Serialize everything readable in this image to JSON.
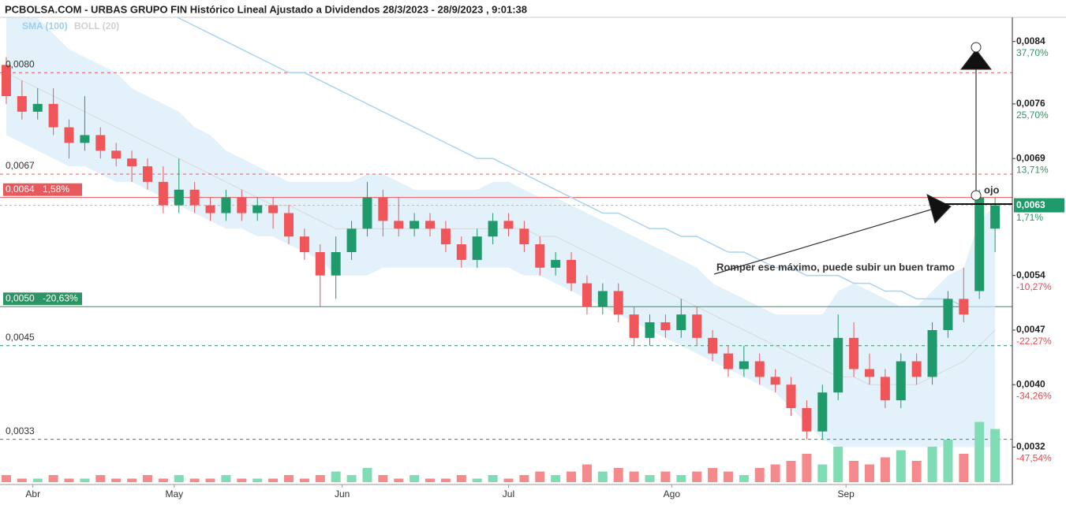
{
  "chart_data": {
    "type": "candlestick",
    "title": "PCBOLSA.COM - URBAS GRUPO FIN Histórico Lineal Ajustado a Dividendos 28/3/2023 - 28/9/2023 , 9:01:38",
    "indicators": [
      "SMA (100)",
      "BOLL (20)"
    ],
    "xlim": [
      -0.4,
      64.1
    ],
    "xticks": [
      {
        "value": 1.7,
        "label": "Abr"
      },
      {
        "value": 10.7,
        "label": "May"
      },
      {
        "value": 21.4,
        "label": "Jun"
      },
      {
        "value": 32,
        "label": "Jul"
      },
      {
        "value": 42.4,
        "label": "Ago"
      },
      {
        "value": 53.5,
        "label": "Sep"
      }
    ],
    "ylim": [
      0.00272,
      0.00871
    ],
    "yticks": [
      {
        "value": 0.0084,
        "label": "0,0084"
      },
      {
        "value": 0.0076,
        "label": "0,0076"
      },
      {
        "value": 0.0069,
        "label": "0,0069"
      },
      {
        "value": 0.0054,
        "label": "0,0054"
      },
      {
        "value": 0.0047,
        "label": "0,0047"
      },
      {
        "value": 0.004,
        "label": "0,0040"
      },
      {
        "value": 0.0032,
        "label": "0,0032"
      }
    ],
    "ytick_changes": [
      "37,70%",
      "25,70%",
      "13,71%",
      "-10,27%",
      "-22,27%",
      "-34,26%",
      "-47,54%"
    ],
    "last_price": {
      "value": 0.0063,
      "label": "0,0063",
      "change": "1,71%"
    },
    "up_color": "#1f9a6a",
    "down_color": "#f0555a",
    "ohlc": [
      [
        0.0081,
        0.0082,
        0.0076,
        0.0077
      ],
      [
        0.0077,
        0.0079,
        0.0074,
        0.0075
      ],
      [
        0.0075,
        0.0078,
        0.0074,
        0.0076
      ],
      [
        0.0076,
        0.0078,
        0.0072,
        0.0073
      ],
      [
        0.0073,
        0.0074,
        0.0069,
        0.0071
      ],
      [
        0.0071,
        0.0077,
        0.007,
        0.0072
      ],
      [
        0.0072,
        0.0073,
        0.0069,
        0.007
      ],
      [
        0.007,
        0.0071,
        0.0068,
        0.0069
      ],
      [
        0.0069,
        0.007,
        0.0066,
        0.0068
      ],
      [
        0.0068,
        0.0069,
        0.0065,
        0.0066
      ],
      [
        0.0066,
        0.0068,
        0.0062,
        0.0063
      ],
      [
        0.0063,
        0.0069,
        0.0062,
        0.0065
      ],
      [
        0.0065,
        0.0066,
        0.0062,
        0.0063
      ],
      [
        0.0063,
        0.0064,
        0.0061,
        0.0062
      ],
      [
        0.0062,
        0.0065,
        0.0061,
        0.0064
      ],
      [
        0.0064,
        0.0065,
        0.0061,
        0.0062
      ],
      [
        0.0062,
        0.0064,
        0.0061,
        0.0063
      ],
      [
        0.0063,
        0.0064,
        0.006,
        0.0062
      ],
      [
        0.0062,
        0.0063,
        0.0058,
        0.0059
      ],
      [
        0.0059,
        0.006,
        0.0056,
        0.0057
      ],
      [
        0.0057,
        0.0058,
        0.005,
        0.0054
      ],
      [
        0.0054,
        0.0059,
        0.0051,
        0.0057
      ],
      [
        0.0057,
        0.0061,
        0.0056,
        0.006
      ],
      [
        0.006,
        0.0066,
        0.0059,
        0.0064
      ],
      [
        0.0064,
        0.0065,
        0.0059,
        0.0061
      ],
      [
        0.0061,
        0.0064,
        0.0059,
        0.006
      ],
      [
        0.006,
        0.0062,
        0.0059,
        0.0061
      ],
      [
        0.0061,
        0.0062,
        0.0059,
        0.006
      ],
      [
        0.006,
        0.0061,
        0.0057,
        0.0058
      ],
      [
        0.0058,
        0.0059,
        0.0055,
        0.0056
      ],
      [
        0.0056,
        0.006,
        0.0055,
        0.0059
      ],
      [
        0.0059,
        0.0062,
        0.0058,
        0.0061
      ],
      [
        0.0061,
        0.0062,
        0.0059,
        0.006
      ],
      [
        0.006,
        0.0061,
        0.0057,
        0.0058
      ],
      [
        0.0058,
        0.0059,
        0.0054,
        0.0055
      ],
      [
        0.0055,
        0.0057,
        0.0054,
        0.0056
      ],
      [
        0.0056,
        0.0057,
        0.0052,
        0.0053
      ],
      [
        0.0053,
        0.0054,
        0.0049,
        0.005
      ],
      [
        0.005,
        0.0053,
        0.0049,
        0.0052
      ],
      [
        0.0052,
        0.0053,
        0.0048,
        0.0049
      ],
      [
        0.0049,
        0.005,
        0.0045,
        0.0046
      ],
      [
        0.0046,
        0.0049,
        0.0045,
        0.0048
      ],
      [
        0.0048,
        0.0049,
        0.0046,
        0.0047
      ],
      [
        0.0047,
        0.0051,
        0.0046,
        0.0049
      ],
      [
        0.0049,
        0.005,
        0.0045,
        0.0046
      ],
      [
        0.0046,
        0.0047,
        0.0043,
        0.0044
      ],
      [
        0.0044,
        0.0045,
        0.0041,
        0.0042
      ],
      [
        0.0042,
        0.0045,
        0.0041,
        0.0043
      ],
      [
        0.0043,
        0.0044,
        0.004,
        0.0041
      ],
      [
        0.0041,
        0.0042,
        0.0039,
        0.004
      ],
      [
        0.004,
        0.0041,
        0.0036,
        0.0037
      ],
      [
        0.0037,
        0.0038,
        0.0033,
        0.0034
      ],
      [
        0.0034,
        0.004,
        0.0033,
        0.0039
      ],
      [
        0.0039,
        0.0049,
        0.0038,
        0.0046
      ],
      [
        0.0046,
        0.0048,
        0.0041,
        0.0042
      ],
      [
        0.0042,
        0.0044,
        0.004,
        0.0041
      ],
      [
        0.0041,
        0.0042,
        0.0037,
        0.0038
      ],
      [
        0.0038,
        0.0044,
        0.0037,
        0.0043
      ],
      [
        0.0043,
        0.0044,
        0.004,
        0.0041
      ],
      [
        0.0041,
        0.0048,
        0.004,
        0.0047
      ],
      [
        0.0047,
        0.0052,
        0.0046,
        0.0051
      ],
      [
        0.0051,
        0.0055,
        0.0048,
        0.0049
      ],
      [
        0.0052,
        0.0065,
        0.0051,
        0.0064
      ],
      [
        0.006,
        0.0064,
        0.0057,
        0.0063
      ]
    ],
    "volume": {
      "ylim": [
        0,
        20
      ],
      "up_color": "#7fdcb4",
      "down_color": "#f58a8c",
      "values": [
        2,
        1,
        1,
        2,
        1,
        1,
        2,
        1,
        1,
        2,
        1,
        2,
        1,
        1,
        2,
        1,
        1,
        1,
        2,
        1,
        2,
        3,
        2,
        4,
        2,
        1,
        2,
        1,
        1,
        2,
        1,
        2,
        1,
        2,
        3,
        2,
        3,
        5,
        3,
        4,
        3,
        2,
        3,
        2,
        3,
        4,
        3,
        2,
        4,
        5,
        6,
        8,
        5,
        10,
        6,
        5,
        7,
        9,
        6,
        10,
        12,
        8,
        17,
        15
      ]
    },
    "sma": {
      "color": "#a9d4f0",
      "values": [
        null,
        null,
        null,
        null,
        null,
        null,
        null,
        null,
        null,
        0.009,
        0.0088,
        0.0087,
        0.0086,
        0.0085,
        0.0084,
        0.0083,
        0.0082,
        0.0081,
        0.008,
        0.008,
        0.0079,
        0.0078,
        0.0077,
        0.0076,
        0.0075,
        0.0074,
        0.0073,
        0.0072,
        0.0071,
        0.007,
        0.0069,
        0.0069,
        0.0068,
        0.0067,
        0.0066,
        0.0065,
        0.0064,
        0.0063,
        0.0062,
        0.0062,
        0.0061,
        0.006,
        0.006,
        0.0059,
        0.0059,
        0.0058,
        0.0057,
        0.0057,
        0.0056,
        0.0055,
        0.0055,
        0.0054,
        0.0054,
        0.0054,
        0.0053,
        0.0053,
        0.0052,
        0.0052,
        0.0051,
        0.0051,
        0.0051,
        0.005,
        0.005,
        0.005
      ]
    },
    "bollinger": {
      "color": "#e3f1fb",
      "middle_color": "#d9d9d9",
      "upper": [
        0.009,
        0.0089,
        0.0087,
        0.0085,
        0.0083,
        0.0082,
        0.0081,
        0.008,
        0.0078,
        0.0077,
        0.0076,
        0.0075,
        0.0073,
        0.0072,
        0.007,
        0.0069,
        0.0068,
        0.0067,
        0.0066,
        0.0066,
        0.0066,
        0.0066,
        0.0066,
        0.0067,
        0.0067,
        0.0066,
        0.0065,
        0.0065,
        0.0065,
        0.0065,
        0.0065,
        0.0066,
        0.0066,
        0.0065,
        0.0064,
        0.0064,
        0.0063,
        0.0062,
        0.0061,
        0.006,
        0.0059,
        0.0058,
        0.0057,
        0.0056,
        0.0055,
        0.0053,
        0.0052,
        0.0051,
        0.005,
        0.0049,
        0.0049,
        0.0049,
        0.0049,
        0.0052,
        0.0053,
        0.0052,
        0.0051,
        0.005,
        0.005,
        0.0052,
        0.0054,
        0.0055,
        0.0061,
        0.0063
      ],
      "middle": [
        0.008,
        0.0079,
        0.0078,
        0.0077,
        0.0076,
        0.0075,
        0.0074,
        0.0073,
        0.0072,
        0.0071,
        0.007,
        0.0069,
        0.0068,
        0.0067,
        0.0066,
        0.0065,
        0.0064,
        0.0063,
        0.0063,
        0.0062,
        0.0061,
        0.006,
        0.006,
        0.006,
        0.006,
        0.006,
        0.006,
        0.006,
        0.006,
        0.006,
        0.006,
        0.006,
        0.006,
        0.006,
        0.0059,
        0.0059,
        0.0058,
        0.0057,
        0.0056,
        0.0055,
        0.0054,
        0.0053,
        0.0052,
        0.0051,
        0.005,
        0.0049,
        0.0048,
        0.0047,
        0.0046,
        0.0045,
        0.0044,
        0.0043,
        0.0042,
        0.0041,
        0.0041,
        0.004,
        0.004,
        0.004,
        0.004,
        0.0041,
        0.0042,
        0.0043,
        0.0045,
        0.0047
      ],
      "lower": [
        0.0072,
        0.0071,
        0.007,
        0.0069,
        0.0068,
        0.0068,
        0.0067,
        0.0066,
        0.0066,
        0.0065,
        0.0064,
        0.0063,
        0.0062,
        0.0061,
        0.006,
        0.006,
        0.0059,
        0.0059,
        0.0058,
        0.0057,
        0.0056,
        0.0054,
        0.0054,
        0.0054,
        0.0055,
        0.0055,
        0.0055,
        0.0055,
        0.0055,
        0.0055,
        0.0055,
        0.0055,
        0.0055,
        0.0054,
        0.0054,
        0.0053,
        0.0052,
        0.0051,
        0.005,
        0.0049,
        0.0048,
        0.0047,
        0.0046,
        0.0045,
        0.0044,
        0.0043,
        0.0042,
        0.0041,
        0.004,
        0.0039,
        0.0037,
        0.0035,
        0.0033,
        0.0032,
        0.0032,
        0.0032,
        0.0032,
        0.0032,
        0.0032,
        0.0032,
        0.0032,
        0.0032,
        0.0032,
        0.0032
      ]
    },
    "levels": [
      {
        "value": 0.008,
        "label": "0,0080",
        "color": "#e8595d",
        "dashed": true
      },
      {
        "value": 0.0067,
        "label": "0,0067",
        "color": "#e8595d",
        "dashed": true
      },
      {
        "value": 0.0064,
        "label": "0,0064",
        "change": "1,58%",
        "color": "#e8595d",
        "dashed": false
      },
      {
        "value": 0.005,
        "label": "0,0050",
        "change": "-20,63%",
        "color": "#2e9466",
        "dashed": false
      },
      {
        "value": 0.0045,
        "label": "0,0045",
        "color": "#2e9466",
        "dashed": true
      },
      {
        "value": 0.0033,
        "label": "0,0033",
        "color": "#2e9466",
        "dashed": true
      }
    ],
    "annotations": [
      "Romper ese máximo, puede subir un buen tramo",
      "ojo"
    ]
  }
}
